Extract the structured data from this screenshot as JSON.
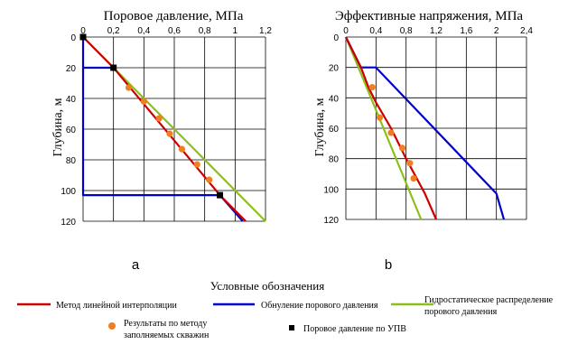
{
  "colors": {
    "interp": "#cc0000",
    "zeroing": "#0000cc",
    "hydro": "#8dbf1a",
    "wells": "#f07f22",
    "upv": "#000000",
    "grid": "#000000"
  },
  "chart_data": [
    {
      "type": "line",
      "title": "Поровое давление, МПа",
      "xlabel": "",
      "ylabel": "Глубина, м",
      "panel_label": "a",
      "xlim": [
        0,
        1.2
      ],
      "ylim": [
        0,
        120
      ],
      "x_ticks": [
        "0",
        "0,2",
        "0,4",
        "0,6",
        "0,8",
        "1",
        "1,2"
      ],
      "y_ticks": [
        "0",
        "20",
        "40",
        "60",
        "80",
        "100",
        "120"
      ],
      "series": [
        {
          "key": "interp",
          "x": [
            0,
            0.2,
            0.9,
            1.07
          ],
          "y": [
            0,
            20,
            103,
            120
          ]
        },
        {
          "key": "zeroing",
          "x": [
            0,
            0,
            0.2,
            0,
            0,
            0.9,
            1.05
          ],
          "y": [
            0,
            20,
            20,
            20,
            103,
            103,
            120
          ]
        },
        {
          "key": "hydro",
          "x": [
            0,
            1.2
          ],
          "y": [
            0,
            120
          ]
        }
      ],
      "points_wells": {
        "x": [
          0.3,
          0.4,
          0.5,
          0.57,
          0.65,
          0.75,
          0.83
        ],
        "y": [
          33,
          42,
          53,
          63,
          73,
          83,
          93
        ]
      },
      "points_upv": {
        "x": [
          0,
          0.2,
          0.9
        ],
        "y": [
          0,
          20,
          103
        ]
      }
    },
    {
      "type": "line",
      "title": "Эффективные напряжения, МПа",
      "xlabel": "",
      "ylabel": "Глубина, м",
      "panel_label": "b",
      "xlim": [
        0,
        2.4
      ],
      "ylim": [
        0,
        120
      ],
      "x_ticks": [
        "0",
        "0,4",
        "0,8",
        "1,2",
        "1,6",
        "2",
        "2,4"
      ],
      "y_ticks": [
        "0",
        "20",
        "40",
        "60",
        "80",
        "100",
        "120"
      ],
      "series": [
        {
          "key": "interp",
          "x": [
            0,
            0.2,
            0.3,
            0.4,
            0.6,
            0.8,
            1.05,
            1.2
          ],
          "y": [
            0,
            20,
            33,
            43,
            60,
            80,
            103,
            120
          ]
        },
        {
          "key": "zeroing",
          "x": [
            0,
            0.2,
            0.4,
            2.0,
            2.1
          ],
          "y": [
            0,
            20,
            20,
            103,
            120
          ]
        },
        {
          "key": "hydro",
          "x": [
            0,
            1.0
          ],
          "y": [
            0,
            120
          ]
        }
      ],
      "points_wells": {
        "x": [
          0.35,
          0.45,
          0.6,
          0.75,
          0.85,
          0.9
        ],
        "y": [
          33,
          53,
          63,
          73,
          83,
          93
        ]
      },
      "points_upv": {
        "x": [],
        "y": []
      }
    }
  ],
  "legend": {
    "title": "Условные обозначения",
    "interp": "Метод линейной интерполяции",
    "zeroing": "Обнуление порового давления",
    "hydro_line1": "Гидростатическое распределение",
    "hydro_line2": "порового давления",
    "wells_line1": "Результаты по методу",
    "wells_line2": "заполняемых скважин",
    "upv": "Поровое давление по УПВ"
  }
}
